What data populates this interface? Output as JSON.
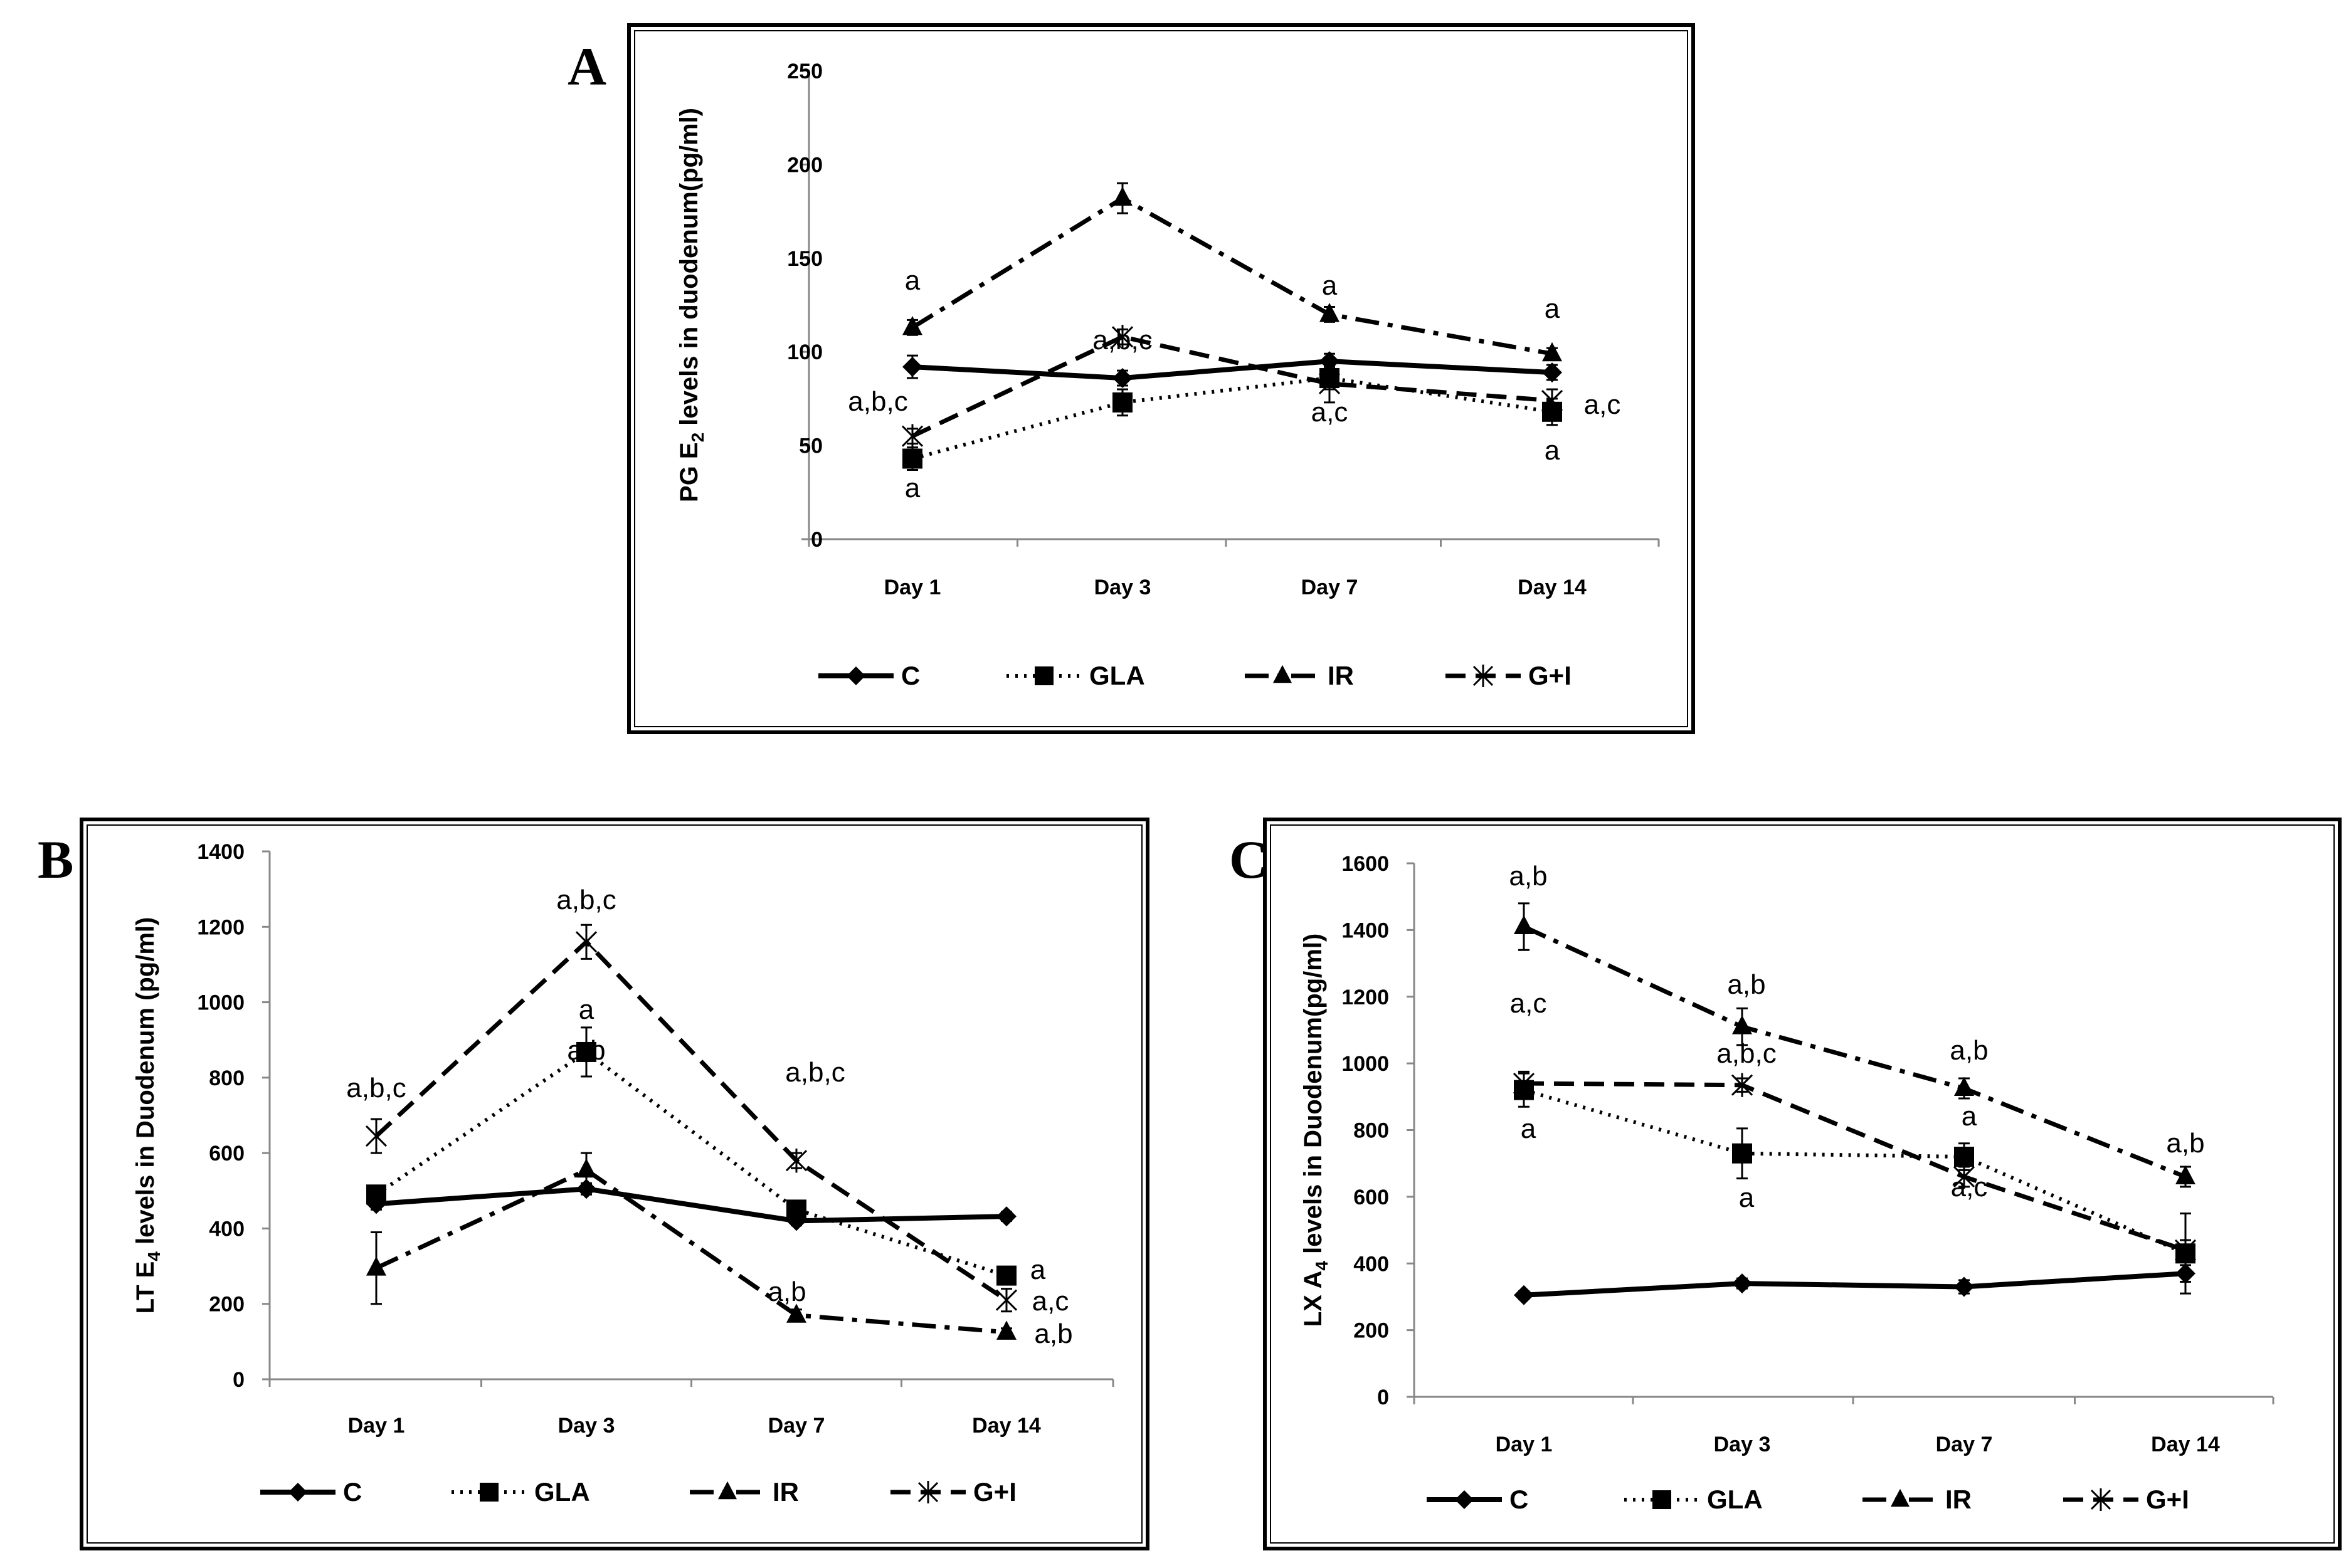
{
  "panels": [
    {
      "letter": "A",
      "chart_data": {
        "type": "line",
        "ylabel": "PG E2 levels in duodenum(pg/ml)",
        "ylabel_main": "PG E",
        "ylabel_sub": "2",
        "ylabel_rest": " levels in duodenum(pg/ml)",
        "categories": [
          "Day 1",
          "Day 3",
          "Day 7",
          "Day 14"
        ],
        "ylim": [
          0,
          250
        ],
        "yticks": [
          0,
          50,
          100,
          150,
          200,
          250
        ],
        "series": [
          {
            "name": "C",
            "values": [
              92,
              86,
              95,
              89
            ],
            "errors": [
              6,
              4,
              4,
              4
            ]
          },
          {
            "name": "GLA",
            "values": [
              43,
              73,
              86,
              68
            ],
            "errors": [
              6,
              7,
              6,
              7
            ]
          },
          {
            "name": "IR",
            "values": [
              113,
              182,
              120,
              99
            ],
            "errors": [
              4,
              8,
              4,
              3
            ]
          },
          {
            "name": "G+I",
            "values": [
              55,
              108,
              83,
              74
            ],
            "errors": [
              4,
              4,
              10,
              6
            ]
          }
        ],
        "annotations": [
          "a",
          "a,b,c",
          "a",
          "a",
          "a,b,c",
          "a",
          "a,c",
          "a",
          "a,c",
          "a"
        ],
        "legend": [
          "C",
          "GLA",
          "IR",
          "G+I"
        ],
        "grid": false,
        "legend_position": "bottom"
      }
    },
    {
      "letter": "B",
      "chart_data": {
        "type": "line",
        "ylabel": "LT E4 levels in Duodenum (pg/ml)",
        "ylabel_main": "LT E",
        "ylabel_sub": "4",
        "ylabel_rest": " levels in Duodenum (pg/ml)",
        "categories": [
          "Day 1",
          "Day 3",
          "Day 7",
          "Day 14"
        ],
        "ylim": [
          0,
          1400
        ],
        "yticks": [
          0,
          200,
          400,
          600,
          800,
          1000,
          1200,
          1400
        ],
        "series": [
          {
            "name": "C",
            "values": [
              465,
              505,
              420,
              432
            ],
            "errors": [
              15,
              15,
              12,
              12
            ]
          },
          {
            "name": "GLA",
            "values": [
              490,
              868,
              450,
              275
            ],
            "errors": [
              20,
              65,
              20,
              20
            ]
          },
          {
            "name": "IR",
            "values": [
              295,
              555,
              170,
              125
            ],
            "errors": [
              95,
              45,
              15,
              10
            ]
          },
          {
            "name": "G+I",
            "values": [
              645,
              1160,
              580,
              210
            ],
            "errors": [
              45,
              45,
              20,
              30
            ]
          }
        ],
        "annotations": [
          "a,b,c",
          "a,b,c",
          "a",
          "a,b",
          "a,b,c",
          "a,b",
          "a",
          "a,c",
          "a,b"
        ],
        "legend": [
          "C",
          "GLA",
          "IR",
          "G+I"
        ],
        "grid": false,
        "legend_position": "bottom"
      }
    },
    {
      "letter": "C",
      "chart_data": {
        "type": "line",
        "ylabel": "LX A4 levels in Duodenum(pg/ml)",
        "ylabel_main": "LX A",
        "ylabel_sub": "4",
        "ylabel_rest": " levels in Duodenum(pg/ml)",
        "categories": [
          "Day 1",
          "Day 3",
          "Day 7",
          "Day 14"
        ],
        "ylim": [
          0,
          1600
        ],
        "yticks": [
          0,
          200,
          400,
          600,
          800,
          1000,
          1200,
          1400,
          1600
        ],
        "series": [
          {
            "name": "C",
            "values": [
              305,
              340,
              330,
              370
            ],
            "errors": [
              12,
              15,
              20,
              25
            ]
          },
          {
            "name": "GLA",
            "values": [
              920,
              730,
              720,
              430
            ],
            "errors": [
              50,
              75,
              40,
              120
            ]
          },
          {
            "name": "IR",
            "values": [
              1410,
              1110,
              925,
              660
            ],
            "errors": [
              70,
              55,
              30,
              30
            ]
          },
          {
            "name": "G+I",
            "values": [
              940,
              935,
              660,
              440
            ],
            "errors": [
              35,
              20,
              30,
              30
            ]
          }
        ],
        "annotations": [
          "a,b",
          "a,c",
          "a",
          "a,b",
          "a,b,c",
          "a",
          "a,b",
          "a",
          "a,c",
          "a,b"
        ],
        "legend": [
          "C",
          "GLA",
          "IR",
          "G+I"
        ],
        "grid": false,
        "legend_position": "bottom"
      }
    }
  ]
}
